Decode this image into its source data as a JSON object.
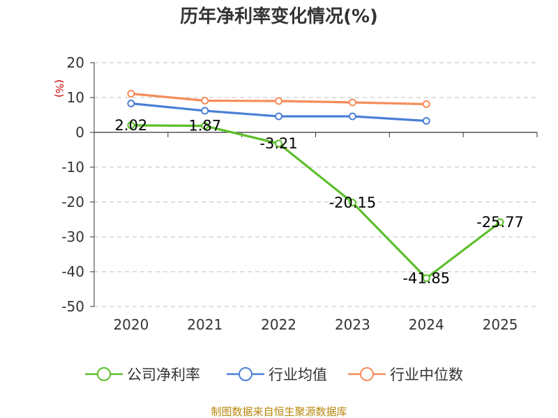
{
  "chart_data": {
    "type": "line",
    "title": "历年净利率变化情况(%)",
    "unit_label": "(%)",
    "categories": [
      "2020",
      "2021",
      "2022",
      "2023",
      "2024",
      "2025"
    ],
    "y_ticks": [
      "20",
      "10",
      "0",
      "-10",
      "-20",
      "-30",
      "-40",
      "-50"
    ],
    "ylim": [
      -50,
      20
    ],
    "grid": true,
    "legend_position": "bottom",
    "series": [
      {
        "name": "公司净利率",
        "color": "#5cbf2a",
        "values": [
          2.02,
          1.87,
          -3.21,
          -20.15,
          -41.85,
          -25.77
        ],
        "labels": [
          "2.02",
          "1.87",
          "-3.21",
          "-20.15",
          "-41.85",
          "-25.77"
        ]
      },
      {
        "name": "行业均值",
        "color": "#4a7fd6",
        "values": [
          8.3,
          6.2,
          4.6,
          4.6,
          3.3,
          null
        ]
      },
      {
        "name": "行业中位数",
        "color": "#f58c5a",
        "values": [
          11.1,
          9.1,
          9.0,
          8.6,
          8.1,
          null
        ]
      }
    ]
  },
  "footer": {
    "source": "制图数据来自恒生聚源数据库"
  }
}
